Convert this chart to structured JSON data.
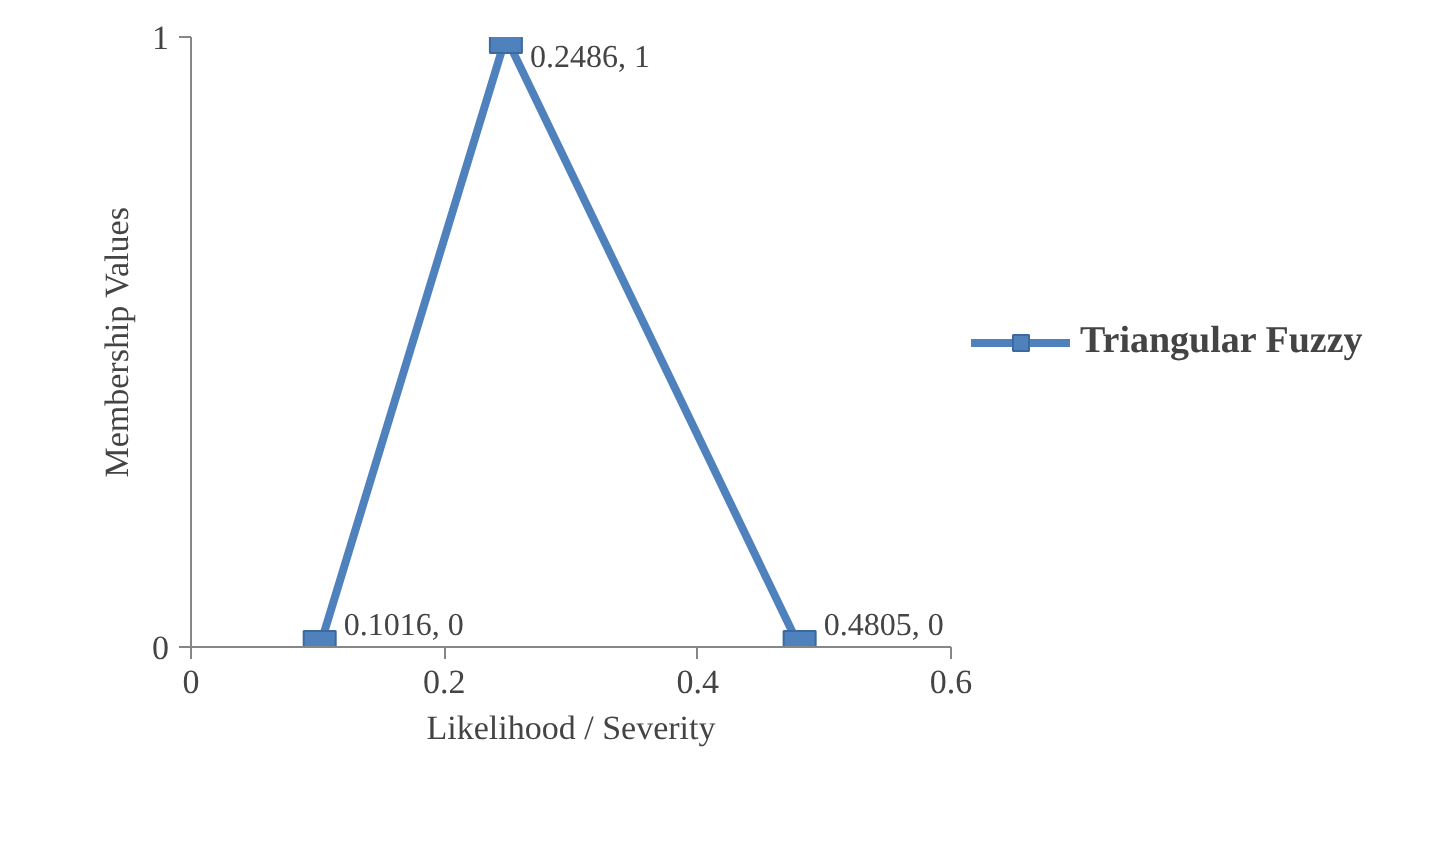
{
  "chart_data": {
    "type": "line",
    "xlabel": "Likelihood / Severity",
    "ylabel": "Membership Values",
    "x": [
      0.1016,
      0.2486,
      0.4805
    ],
    "series": [
      {
        "name": "Triangular Fuzzy",
        "color": "#4f81bd",
        "values": [
          0,
          1,
          0
        ],
        "value_labels": [
          "0.1016, 0",
          "0.2486, 1",
          "0.4805, 0"
        ]
      }
    ],
    "xlim": [
      0,
      0.6
    ],
    "xticks": [
      0,
      0.2,
      0.4,
      0.6
    ],
    "ylim": [
      0,
      1
    ],
    "yticks": [
      0,
      1
    ],
    "grid": false,
    "legend": "right",
    "marker": "square",
    "line_style": "solid"
  }
}
